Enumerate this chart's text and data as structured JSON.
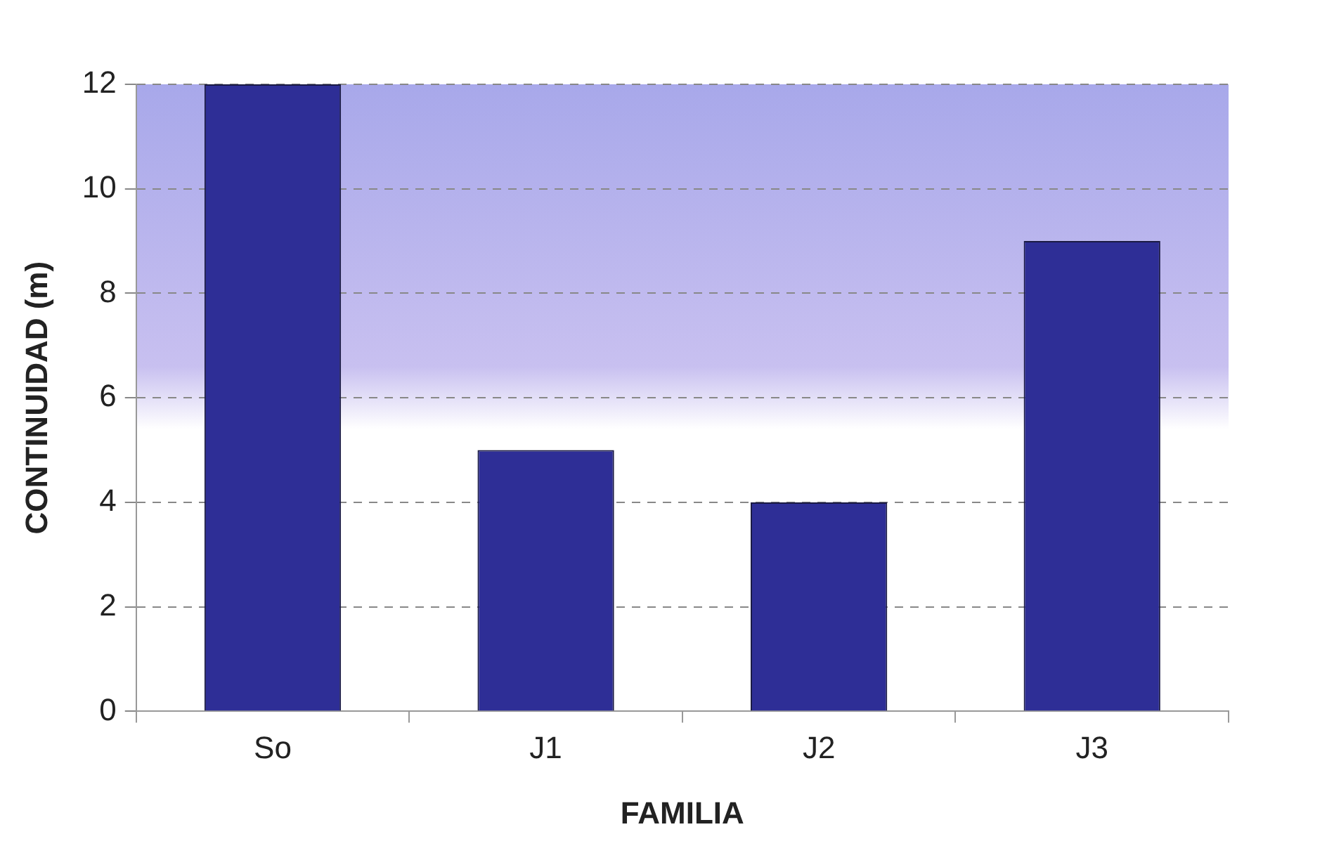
{
  "chart_data": {
    "type": "bar",
    "xlabel": "FAMILIA",
    "ylabel": "CONTINUIDAD (m)",
    "categories": [
      "So",
      "J1",
      "J2",
      "J3"
    ],
    "values": [
      12,
      5,
      4,
      9
    ],
    "color": "#2e2e96",
    "ylim": [
      0,
      12
    ],
    "yticks": [
      0,
      2,
      4,
      6,
      8,
      10,
      12
    ],
    "grid": "y",
    "legend": false
  }
}
